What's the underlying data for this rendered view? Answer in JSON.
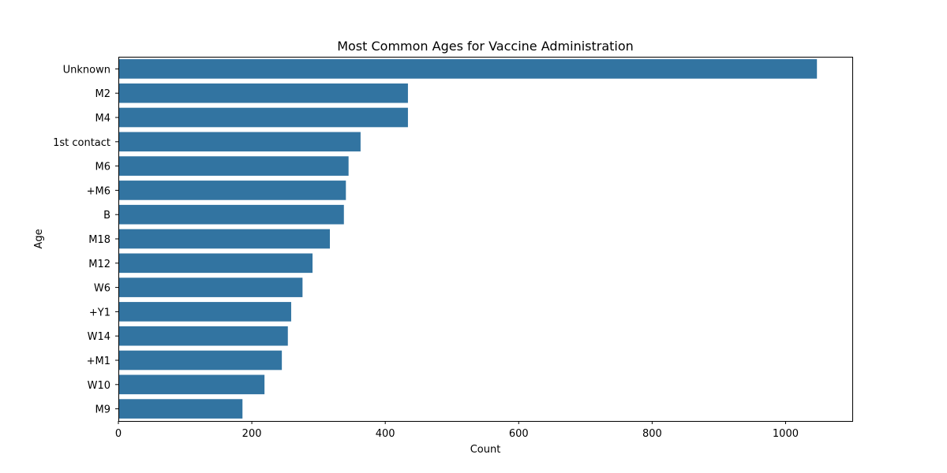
{
  "chart_data": {
    "type": "bar",
    "orientation": "horizontal",
    "title": "Most Common Ages for Vaccine Administration",
    "xlabel": "Count",
    "ylabel": "Age",
    "xlim": [
      0,
      1100
    ],
    "xticks": [
      0,
      200,
      400,
      600,
      800,
      1000
    ],
    "grid": false,
    "bar_color": "#3274a1",
    "categories": [
      "Unknown",
      "M2",
      "M4",
      "1st contact",
      "M6",
      "+M6",
      "B",
      "M18",
      "M12",
      "W6",
      "+Y1",
      "W14",
      "+M1",
      "W10",
      "M9"
    ],
    "values": [
      1047,
      434,
      434,
      363,
      345,
      341,
      338,
      317,
      291,
      276,
      259,
      254,
      245,
      219,
      186
    ]
  }
}
